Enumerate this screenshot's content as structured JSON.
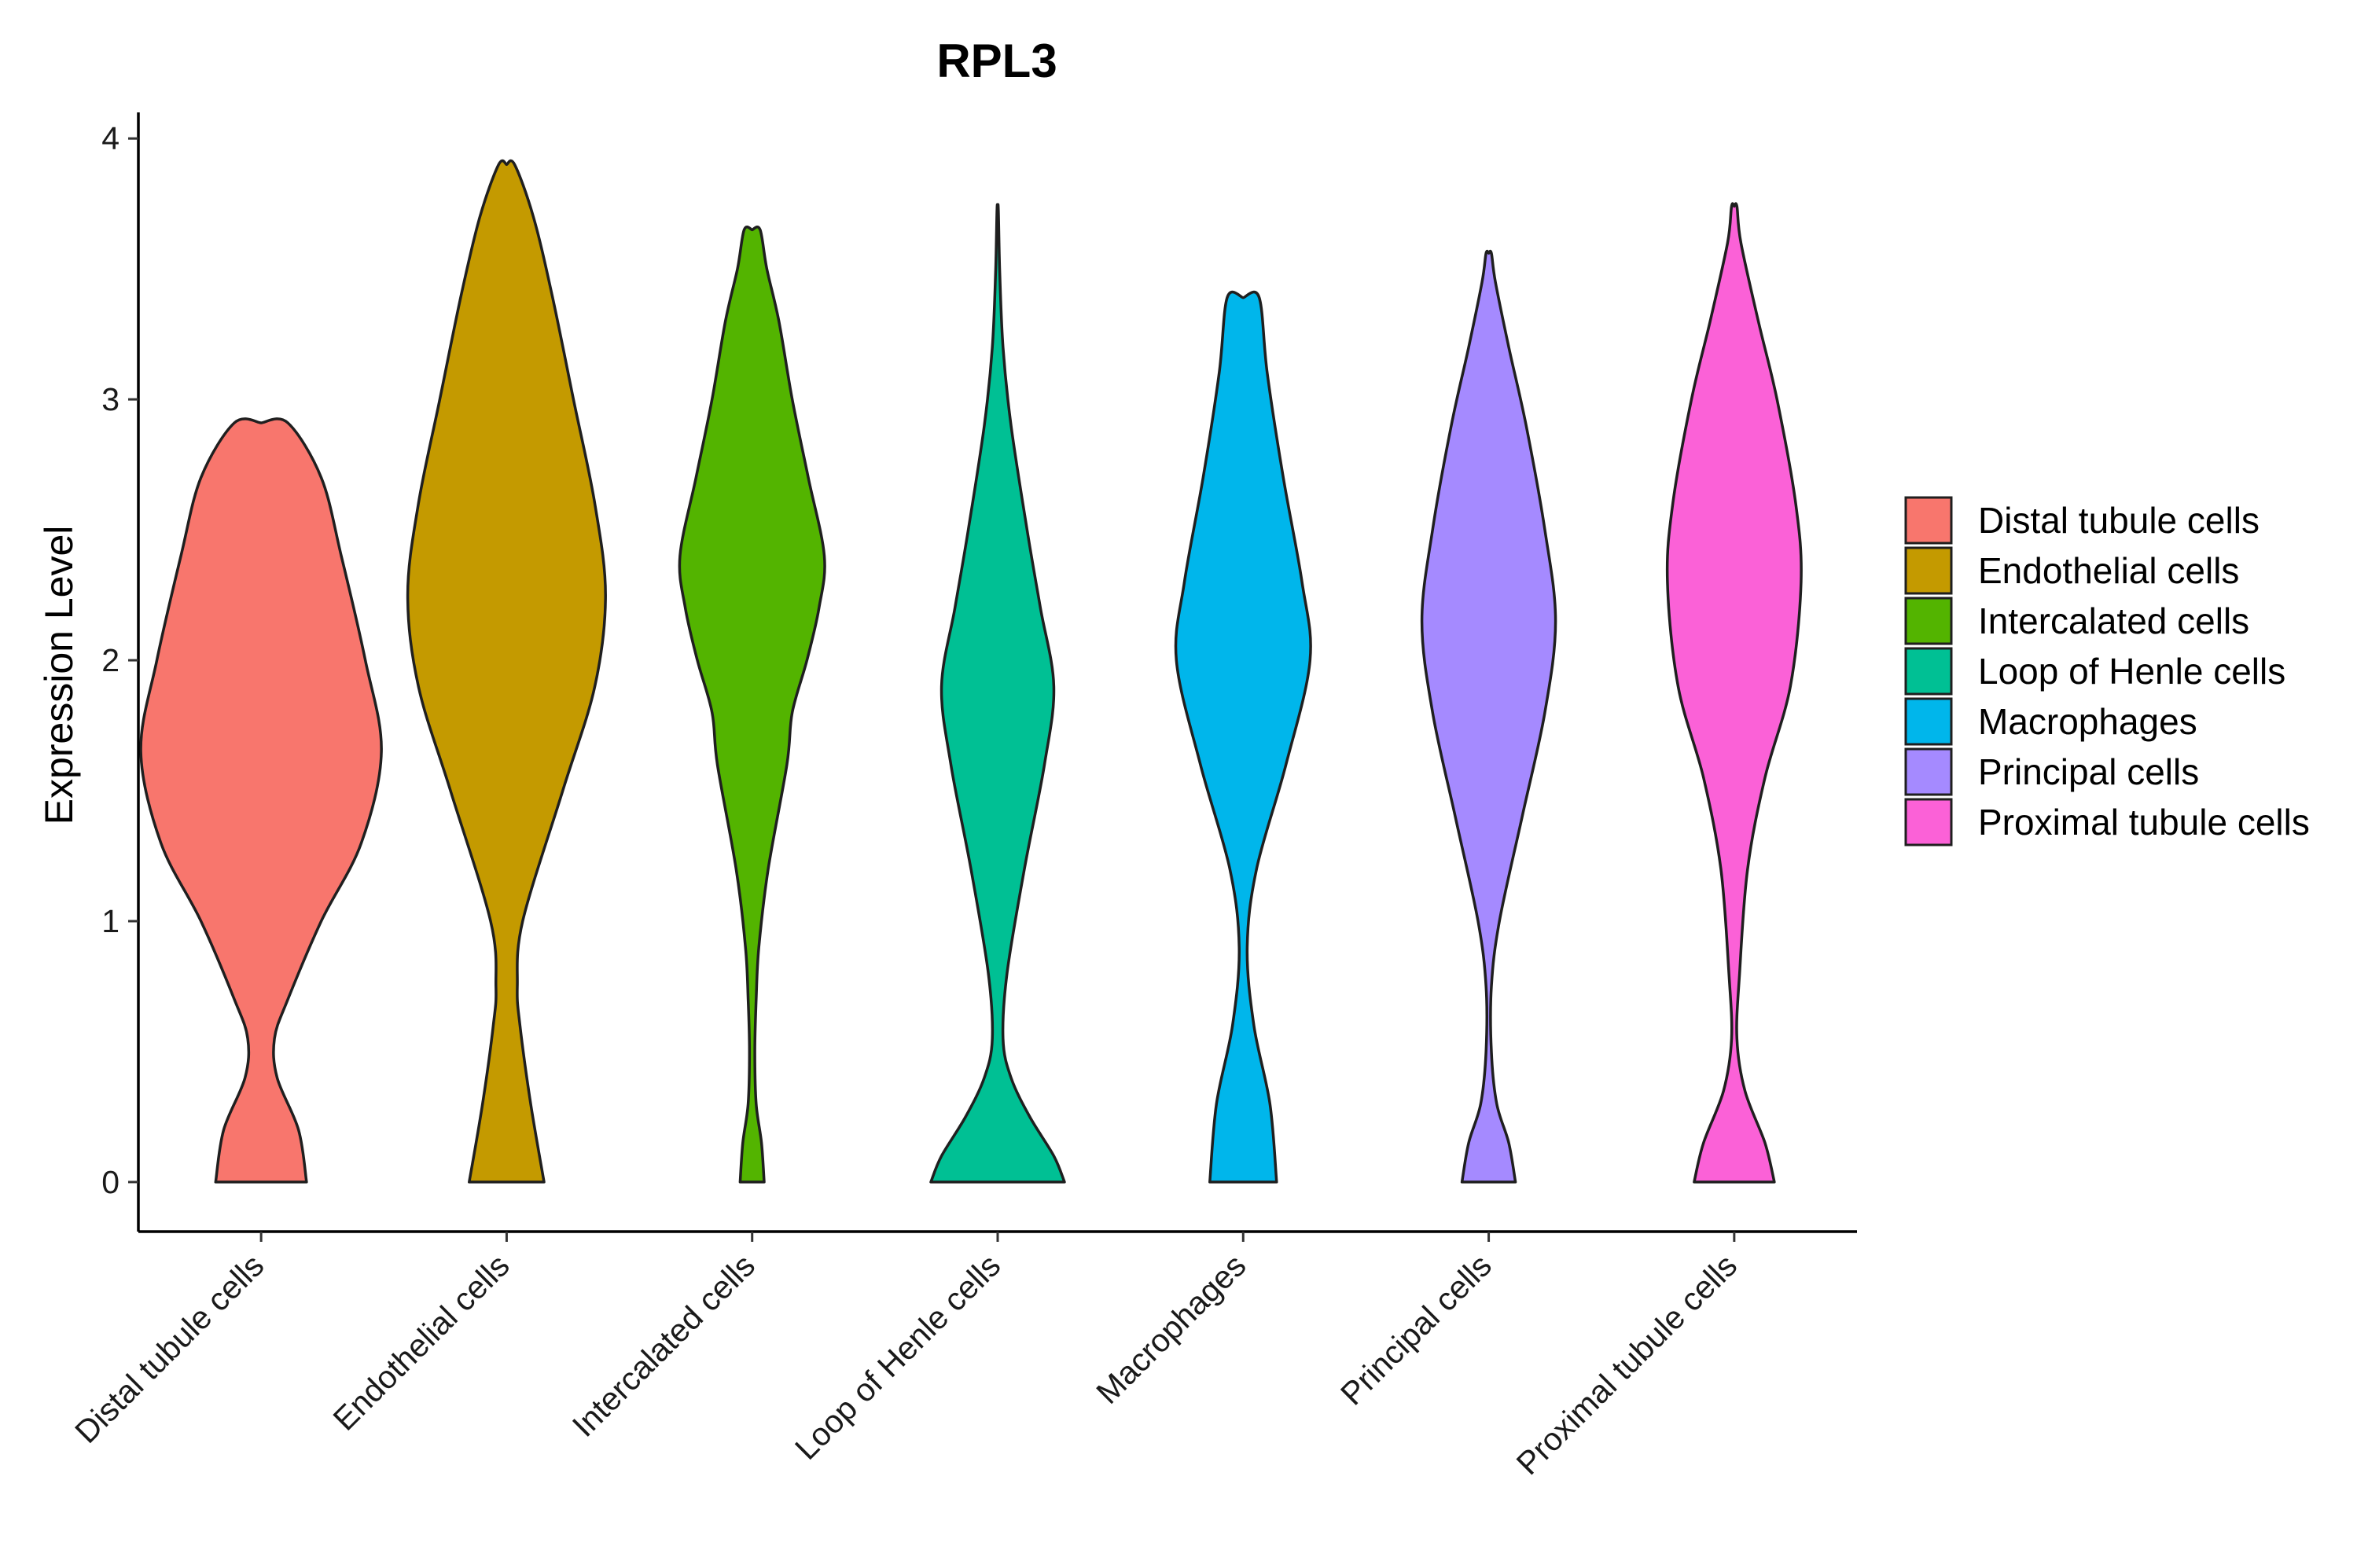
{
  "chart_data": {
    "type": "violin",
    "title": "RPL3",
    "xlabel": "",
    "ylabel": "Expression Level",
    "ylim": [
      -0.19,
      4.1
    ],
    "yticks": [
      0,
      1,
      2,
      3,
      4
    ],
    "grid": false,
    "legend_position": "right",
    "categories": [
      "Distal tubule cells",
      "Endothelial cells",
      "Intercalated cells",
      "Loop of Henle cells",
      "Macrophages",
      "Principal cells",
      "Proximal tubule cells"
    ],
    "colors": [
      "#F8766D",
      "#C49A00",
      "#53B400",
      "#00C094",
      "#00B6EB",
      "#A58AFF",
      "#FB61D7"
    ],
    "series": [
      {
        "name": "Distal tubule cells",
        "max": 2.91,
        "profile": [
          [
            0,
            0.34
          ],
          [
            0.2,
            0.28
          ],
          [
            0.4,
            0.12
          ],
          [
            0.55,
            0.1
          ],
          [
            0.7,
            0.2
          ],
          [
            1.0,
            0.45
          ],
          [
            1.3,
            0.75
          ],
          [
            1.65,
            0.9
          ],
          [
            2.0,
            0.78
          ],
          [
            2.4,
            0.6
          ],
          [
            2.7,
            0.45
          ],
          [
            2.91,
            0.2
          ]
        ]
      },
      {
        "name": "Endothelial cells",
        "max": 3.9,
        "profile": [
          [
            0,
            0.28
          ],
          [
            0.3,
            0.18
          ],
          [
            0.6,
            0.1
          ],
          [
            0.75,
            0.08
          ],
          [
            1.0,
            0.12
          ],
          [
            1.5,
            0.42
          ],
          [
            1.9,
            0.66
          ],
          [
            2.25,
            0.74
          ],
          [
            2.6,
            0.66
          ],
          [
            3.0,
            0.5
          ],
          [
            3.4,
            0.34
          ],
          [
            3.7,
            0.2
          ],
          [
            3.9,
            0.06
          ]
        ]
      },
      {
        "name": "Intercalated cells",
        "max": 3.65,
        "profile": [
          [
            0,
            0.09
          ],
          [
            0.15,
            0.07
          ],
          [
            0.3,
            0.03
          ],
          [
            0.5,
            0.02
          ],
          [
            0.7,
            0.03
          ],
          [
            0.9,
            0.05
          ],
          [
            1.2,
            0.12
          ],
          [
            1.6,
            0.26
          ],
          [
            1.8,
            0.3
          ],
          [
            2.0,
            0.41
          ],
          [
            2.2,
            0.5
          ],
          [
            2.4,
            0.54
          ],
          [
            2.7,
            0.42
          ],
          [
            3.0,
            0.3
          ],
          [
            3.3,
            0.2
          ],
          [
            3.5,
            0.11
          ],
          [
            3.65,
            0.06
          ]
        ]
      },
      {
        "name": "Loop of Henle cells",
        "max": 3.73,
        "profile": [
          [
            0,
            0.5
          ],
          [
            0.1,
            0.42
          ],
          [
            0.25,
            0.24
          ],
          [
            0.4,
            0.1
          ],
          [
            0.55,
            0.04
          ],
          [
            0.8,
            0.07
          ],
          [
            1.2,
            0.2
          ],
          [
            1.6,
            0.35
          ],
          [
            1.9,
            0.42
          ],
          [
            2.2,
            0.32
          ],
          [
            2.5,
            0.22
          ],
          [
            2.9,
            0.1
          ],
          [
            3.2,
            0.04
          ],
          [
            3.5,
            0.015
          ],
          [
            3.73,
            0.005
          ]
        ]
      },
      {
        "name": "Macrophages",
        "max": 3.39,
        "profile": [
          [
            0,
            0.25
          ],
          [
            0.3,
            0.2
          ],
          [
            0.6,
            0.08
          ],
          [
            0.9,
            0.03
          ],
          [
            1.2,
            0.1
          ],
          [
            1.6,
            0.32
          ],
          [
            2.0,
            0.5
          ],
          [
            2.3,
            0.44
          ],
          [
            2.7,
            0.3
          ],
          [
            3.1,
            0.18
          ],
          [
            3.39,
            0.12
          ]
        ]
      },
      {
        "name": "Principal cells",
        "max": 3.56,
        "profile": [
          [
            0,
            0.2
          ],
          [
            0.15,
            0.15
          ],
          [
            0.3,
            0.06
          ],
          [
            0.5,
            0.02
          ],
          [
            0.75,
            0.02
          ],
          [
            1.0,
            0.08
          ],
          [
            1.4,
            0.25
          ],
          [
            1.8,
            0.42
          ],
          [
            2.15,
            0.5
          ],
          [
            2.5,
            0.42
          ],
          [
            2.9,
            0.28
          ],
          [
            3.2,
            0.15
          ],
          [
            3.45,
            0.05
          ],
          [
            3.56,
            0.02
          ]
        ]
      },
      {
        "name": "Proximal tubule cells",
        "max": 3.74,
        "profile": [
          [
            0,
            0.3
          ],
          [
            0.15,
            0.23
          ],
          [
            0.35,
            0.08
          ],
          [
            0.55,
            0.02
          ],
          [
            0.8,
            0.04
          ],
          [
            1.2,
            0.1
          ],
          [
            1.55,
            0.23
          ],
          [
            1.9,
            0.42
          ],
          [
            2.3,
            0.5
          ],
          [
            2.6,
            0.46
          ],
          [
            3.0,
            0.32
          ],
          [
            3.3,
            0.18
          ],
          [
            3.6,
            0.05
          ],
          [
            3.74,
            0.02
          ]
        ]
      }
    ]
  }
}
